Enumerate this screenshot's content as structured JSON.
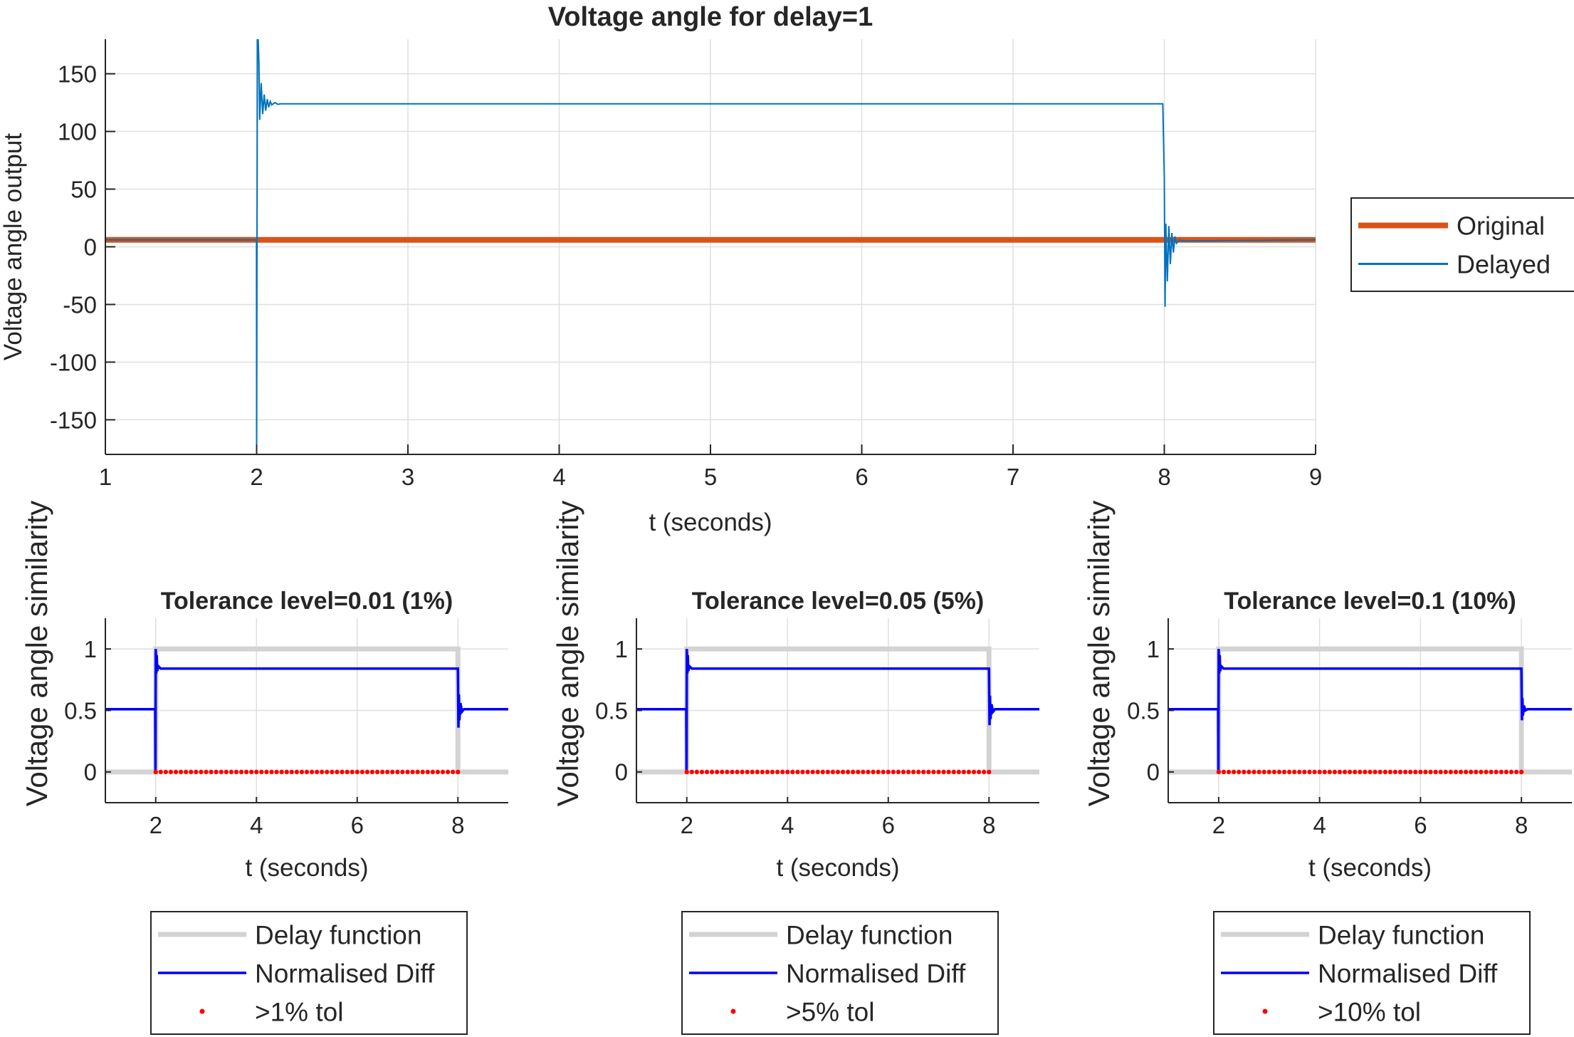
{
  "chart_data": [
    {
      "type": "line",
      "title": "Voltage angle for delay=1",
      "xlabel": "t (seconds)",
      "ylabel": "Voltage angle output",
      "xlim": [
        1,
        9
      ],
      "ylim": [
        -180,
        180
      ],
      "x_ticks": [
        1,
        2,
        3,
        4,
        5,
        6,
        7,
        8,
        9
      ],
      "y_ticks": [
        -150,
        -100,
        -50,
        0,
        50,
        100,
        150
      ],
      "grid": true,
      "legend_position": "outside-right",
      "series": [
        {
          "name": "Original",
          "color": "#D95319",
          "x": [
            1,
            9
          ],
          "y": [
            6,
            6
          ]
        },
        {
          "name": "Delayed",
          "color": "#0072BD",
          "x": [
            1,
            1.999,
            2.0,
            2.005,
            2.01,
            2.015,
            2.02,
            2.03,
            2.04,
            2.05,
            2.06,
            2.07,
            2.08,
            2.09,
            2.1,
            2.12,
            2.14,
            2.16,
            2.2,
            3,
            7.99,
            8.0,
            8.005,
            8.01,
            8.02,
            8.03,
            8.04,
            8.05,
            8.06,
            8.07,
            8.08,
            8.1,
            8.12,
            9
          ],
          "y": [
            6,
            6,
            -180,
            180,
            180,
            160,
            110,
            142,
            115,
            132,
            118,
            128,
            121,
            126,
            123,
            125,
            123.5,
            124,
            124,
            124,
            124,
            60,
            -52,
            20,
            -30,
            18,
            -15,
            12,
            -5,
            9,
            3,
            6,
            5,
            6
          ]
        }
      ]
    },
    {
      "type": "line",
      "title": "Tolerance level=0.01 (1%)",
      "xlabel": "t (seconds)",
      "ylabel": "Voltage angle similarity",
      "xlim": [
        1,
        9
      ],
      "ylim": [
        -0.25,
        1.25
      ],
      "x_ticks": [
        2,
        4,
        6,
        8
      ],
      "y_ticks": [
        0,
        0.5,
        1
      ],
      "grid": true,
      "legend_position": "below",
      "series": [
        {
          "name": "Delay function",
          "color": "#D3D3D3",
          "x": [
            1,
            2,
            2,
            8,
            8,
            9
          ],
          "y": [
            0,
            0,
            1,
            1,
            0,
            0
          ]
        },
        {
          "name": "Normalised Diff",
          "color": "#0000FF",
          "x": [
            1,
            1.99,
            1.995,
            2.0,
            2.01,
            2.02,
            2.03,
            2.05,
            2.1,
            7.99,
            8.0,
            8.01,
            8.02,
            8.03,
            8.05,
            8.08,
            8.12,
            9
          ],
          "y": [
            0.51,
            0.51,
            0.0,
            1.0,
            0.8,
            0.95,
            0.82,
            0.86,
            0.84,
            0.84,
            0.84,
            0.36,
            0.63,
            0.42,
            0.56,
            0.49,
            0.51,
            0.51
          ]
        },
        {
          "name": ">1% tol",
          "color": "#FF0000",
          "marker": "dot",
          "x_range": [
            2,
            8
          ],
          "y": 0
        }
      ]
    },
    {
      "type": "line",
      "title": "Tolerance level=0.05 (5%)",
      "xlabel": "t (seconds)",
      "ylabel": "Voltage angle similarity",
      "xlim": [
        1,
        9
      ],
      "ylim": [
        -0.25,
        1.25
      ],
      "x_ticks": [
        2,
        4,
        6,
        8
      ],
      "y_ticks": [
        0,
        0.5,
        1
      ],
      "grid": true,
      "legend_position": "below",
      "series": [
        {
          "name": "Delay function",
          "color": "#D3D3D3",
          "x": [
            1,
            2,
            2,
            8,
            8,
            9
          ],
          "y": [
            0,
            0,
            1,
            1,
            0,
            0
          ]
        },
        {
          "name": "Normalised Diff",
          "color": "#0000FF",
          "x": [
            1,
            1.99,
            1.995,
            2.0,
            2.01,
            2.02,
            2.03,
            2.05,
            2.1,
            7.99,
            8.0,
            8.01,
            8.02,
            8.03,
            8.05,
            8.08,
            8.12,
            9
          ],
          "y": [
            0.51,
            0.51,
            0.0,
            1.0,
            0.8,
            0.95,
            0.82,
            0.86,
            0.84,
            0.84,
            0.84,
            0.38,
            0.62,
            0.43,
            0.55,
            0.49,
            0.51,
            0.51
          ]
        },
        {
          "name": ">5% tol",
          "color": "#FF0000",
          "marker": "dot",
          "x_range": [
            2,
            8
          ],
          "y": 0
        }
      ]
    },
    {
      "type": "line",
      "title": "Tolerance level=0.1 (10%)",
      "xlabel": "t (seconds)",
      "ylabel": "Voltage angle similarity",
      "xlim": [
        1,
        9
      ],
      "ylim": [
        -0.25,
        1.25
      ],
      "x_ticks": [
        2,
        4,
        6,
        8
      ],
      "y_ticks": [
        0,
        0.5,
        1
      ],
      "grid": true,
      "legend_position": "below",
      "series": [
        {
          "name": "Delay function",
          "color": "#D3D3D3",
          "x": [
            1,
            2,
            2,
            8,
            8,
            9
          ],
          "y": [
            0,
            0,
            1,
            1,
            0,
            0
          ]
        },
        {
          "name": "Normalised Diff",
          "color": "#0000FF",
          "x": [
            1,
            1.99,
            1.995,
            2.0,
            2.01,
            2.02,
            2.03,
            2.05,
            2.1,
            7.99,
            8.0,
            8.01,
            8.02,
            8.03,
            8.05,
            8.08,
            8.12,
            9
          ],
          "y": [
            0.51,
            0.51,
            0.0,
            1.0,
            0.8,
            0.95,
            0.82,
            0.86,
            0.84,
            0.84,
            0.84,
            0.42,
            0.6,
            0.46,
            0.54,
            0.5,
            0.51,
            0.51
          ]
        },
        {
          "name": ">10% tol",
          "color": "#FF0000",
          "marker": "dot",
          "x_range": [
            2,
            8
          ],
          "y": 0
        }
      ]
    }
  ]
}
